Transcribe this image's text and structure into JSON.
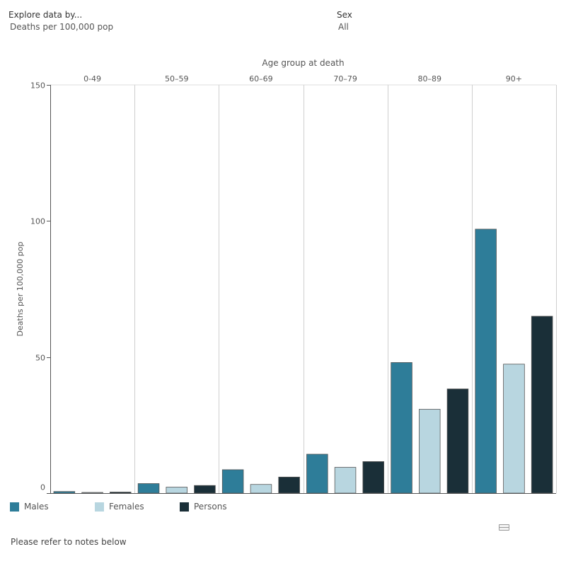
{
  "filters": {
    "measure": {
      "label": "Explore data by...",
      "value": "Deaths per 100,000 pop"
    },
    "sex": {
      "label": "Sex",
      "value": "All"
    }
  },
  "footer": {
    "note": "Please refer to notes below"
  },
  "icons": {
    "toolbar": "view-options-icon"
  },
  "chart_data": {
    "type": "bar",
    "title": "",
    "xlabel": "Age group at death",
    "ylabel": "Deaths per 100,000 pop",
    "categories": [
      "0-49",
      "50–59",
      "60–69",
      "70–79",
      "80–89",
      "90+"
    ],
    "series": [
      {
        "name": "Males",
        "color": "#2e7d99",
        "values": [
          0.6,
          3.5,
          8.6,
          14.3,
          48.0,
          97.0
        ]
      },
      {
        "name": "Females",
        "color": "#b8d6e0",
        "values": [
          0.2,
          2.2,
          3.2,
          9.5,
          30.8,
          47.4
        ]
      },
      {
        "name": "Persons",
        "color": "#1a2f38",
        "values": [
          0.4,
          2.8,
          5.9,
          11.6,
          38.3,
          65.0
        ]
      }
    ],
    "ylim": [
      0,
      150
    ],
    "yticks": [
      0,
      50,
      100,
      150
    ],
    "grid": true,
    "legend": "bottom-left"
  }
}
